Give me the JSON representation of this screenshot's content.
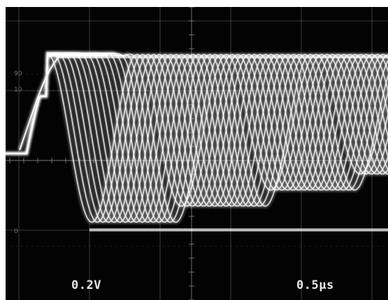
{
  "scope": {
    "volts_per_div": "0.2V",
    "time_per_div": "0.5μs",
    "scale_marks": [
      "90",
      "10",
      "0"
    ],
    "colors": {
      "screen": "#030303",
      "trace": "#ffffff",
      "graticule": "#8a8a8a"
    }
  }
}
